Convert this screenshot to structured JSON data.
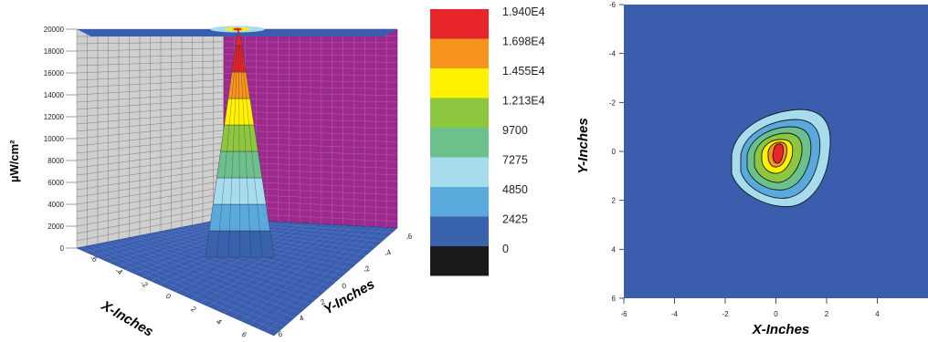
{
  "chart_data": [
    {
      "type": "surface",
      "xlabel": "X-Inches",
      "ylabel": "Y-Inches",
      "zlabel": "µW/cm²",
      "x_ticks": [
        "-6",
        "-4",
        "-2",
        "0",
        "2",
        "4",
        "6"
      ],
      "y_ticks": [
        "-6",
        "-4",
        "-2",
        "0",
        "2",
        "4",
        "6"
      ],
      "z_ticks": [
        "0",
        "2000",
        "4000",
        "6000",
        "8000",
        "10000",
        "12000",
        "14000",
        "16000",
        "18000",
        "20000"
      ],
      "zlim": [
        0,
        20000
      ],
      "peak": {
        "x": 0,
        "y": 0,
        "value": 19400
      },
      "colorbar": {
        "levels": [
          "1.940E4",
          "1.698E4",
          "1.455E4",
          "1.213E4",
          "9700",
          "7275",
          "4850",
          "2425",
          "0"
        ],
        "colors": [
          "#e8252a",
          "#f7941d",
          "#fff200",
          "#8dc63f",
          "#6cc08b",
          "#a6dced",
          "#5aa9dc",
          "#3a63ad",
          "#1a1a1a"
        ]
      }
    },
    {
      "type": "contour",
      "xlabel": "X-Inches",
      "ylabel": "Y-Inches",
      "x_ticks": [
        "-6",
        "-4",
        "-2",
        "0",
        "2",
        "4"
      ],
      "y_ticks": [
        "-6",
        "-4",
        "-2",
        "0",
        "2",
        "4",
        "6"
      ],
      "xlim": [
        -6,
        6
      ],
      "ylim": [
        6,
        -6
      ],
      "peak": {
        "x": 0,
        "y": 0,
        "value": 19400
      }
    }
  ],
  "colors": {
    "background": "#3a5dae",
    "left_wall": "#cfcfcf",
    "right_wall": "#9b2a8c",
    "grid": "#7d7d7d"
  }
}
